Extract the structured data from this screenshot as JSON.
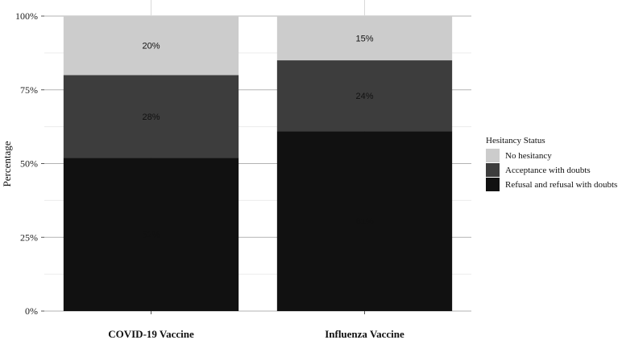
{
  "chart_data": {
    "type": "bar",
    "stacked": true,
    "categories": [
      "COVID-19 Vaccine",
      "Influenza Vaccine"
    ],
    "series": [
      {
        "name": "Refusal and refusal with doubts",
        "values": [
          52,
          61
        ],
        "labels": [
          "52%",
          "61%"
        ],
        "color": "#111111"
      },
      {
        "name": "Acceptance with doubts",
        "values": [
          28,
          24
        ],
        "labels": [
          "28%",
          "24%"
        ],
        "color": "#3d3d3d"
      },
      {
        "name": "No hesitancy",
        "values": [
          20,
          15
        ],
        "labels": [
          "20%",
          "15%"
        ],
        "color": "#cccccc"
      }
    ],
    "ylabel": "Percentage",
    "yticks": [
      "0%",
      "25%",
      "50%",
      "75%",
      "100%"
    ],
    "ylim": [
      0,
      100
    ],
    "grid": true,
    "legend": {
      "title": "Hesitancy Status",
      "position": "right",
      "entries": [
        "No hesitancy",
        "Acceptance with doubts",
        "Refusal and refusal with doubts"
      ]
    }
  }
}
